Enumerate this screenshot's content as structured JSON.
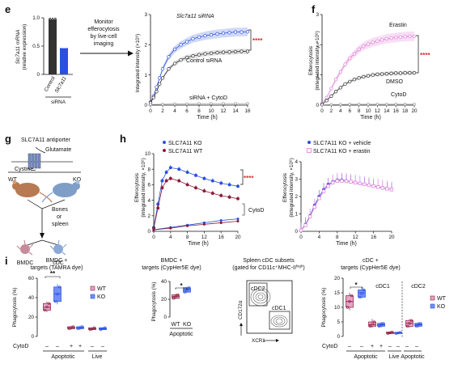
{
  "panels": {
    "e": "e",
    "f": "f",
    "g": "g",
    "h": "h",
    "i": "i"
  },
  "colors": {
    "blue": "#2b4fe0",
    "grey": "#333333",
    "magenta": "#e07ad8",
    "maroon": "#8c1c3c",
    "koLight": "#6f8ff5",
    "wtPink": "#e4a3c7",
    "red": "#d7302c"
  },
  "text": {
    "e_ylabel1": "Slc7a11 mRNA",
    "e_ylabel2": "(relative expression)",
    "e_group": "siRNA",
    "e_cat1": "Control",
    "e_cat2": "Slc7a11",
    "e_arrow1": "Monitor",
    "e_arrow2": "efferocytosis",
    "e_arrow3": "by live-cell",
    "e_arrow4": "imaging",
    "e_series1": "Slc7a11 siRNA",
    "e_series2": "Control siRNA",
    "e_series3": "siRNA + CytoD",
    "e_ylabel": "Integrated intensity (×10⁶)",
    "time": "Time (h)",
    "f_series1": "Erastin",
    "f_series2": "DMSO",
    "f_series3": "CytoD",
    "f_ylabel1": "Efferocytosis",
    "f_ylabel2": "(integrated intensity, ×10⁶)",
    "g_title": "SLC7A11 antiporter",
    "g_glu": "Glutamate",
    "g_cys": "Cystine",
    "g_wt": "WT",
    "g_ko": "KO",
    "g_bones1": "Bones",
    "g_bones2": "or",
    "g_bones3": "spleen",
    "g_bmdc": "BMDC",
    "g_cdc": "cDC",
    "h_l1": "SLC7A11 KO",
    "h_l2": "SLC7A11 WT",
    "h_r1": "SLC7A11 KO + vehicle",
    "h_r2": "SLC7A11 KO + erastin",
    "h_cytod": "CytoD",
    "h_ylabel1": "Efferocytosis",
    "h_ylabel2": "(integrated intensity, ×10⁶)",
    "i1_t1": "BMDC +",
    "i1_t2": "targets (TAMRA dye)",
    "i2_t1": "BMDC +",
    "i2_t2": "targets (CypHer5E dye)",
    "i3_t1": "Spleen cDC subsets",
    "i3_t2": "(gated for CD11c⁺MHC-II",
    "i3_t2sup": "high",
    "i3_t2end": ")",
    "i4_t1": "cDC +",
    "i4_t2": "targets (CypHer5E dye)",
    "phago": "Phagocytosis (%)",
    "wt": "WT",
    "ko": "KO",
    "cytod": "CytoD",
    "minus": "–",
    "plus": "+",
    "apoptotic": "Apoptotic",
    "live": "Live",
    "cdc1": "cDC1",
    "cdc2": "cDC2",
    "cd172": "CD172α",
    "xcr1": "XCR1",
    "sig2": "**",
    "sig1": "*",
    "sig4": "****"
  },
  "chart_data": [
    {
      "id": "e-bar",
      "type": "bar",
      "categories": [
        "Control",
        "Slc7a11"
      ],
      "values": [
        1.0,
        0.47
      ],
      "ylim": [
        0,
        1.0
      ],
      "yticks": [
        0,
        0.5,
        1.0
      ]
    },
    {
      "id": "e-line",
      "type": "line",
      "xlim": [
        0,
        16
      ],
      "ylim": [
        0,
        3
      ],
      "xticks": [
        0,
        2,
        4,
        6,
        8,
        10,
        12,
        14,
        16
      ],
      "yticks": [
        0,
        1,
        2,
        3
      ],
      "series": [
        {
          "name": "Slc7a11 siRNA",
          "x": [
            0,
            0.5,
            1,
            1.5,
            2,
            3,
            4,
            5,
            6,
            7,
            8,
            9,
            10,
            11,
            12,
            13,
            14,
            15,
            16
          ],
          "y": [
            0.1,
            0.3,
            0.6,
            0.9,
            1.2,
            1.6,
            1.85,
            2.0,
            2.1,
            2.2,
            2.25,
            2.3,
            2.33,
            2.36,
            2.38,
            2.4,
            2.42,
            2.42,
            2.43
          ]
        },
        {
          "name": "Control siRNA",
          "x": [
            0,
            0.5,
            1,
            1.5,
            2,
            3,
            4,
            5,
            6,
            7,
            8,
            9,
            10,
            11,
            12,
            13,
            14,
            15,
            16
          ],
          "y": [
            0.08,
            0.25,
            0.45,
            0.7,
            0.9,
            1.2,
            1.38,
            1.5,
            1.58,
            1.63,
            1.67,
            1.7,
            1.72,
            1.74,
            1.75,
            1.76,
            1.77,
            1.78,
            1.78
          ]
        },
        {
          "name": "siRNA + CytoD",
          "x": [
            0,
            2,
            4,
            6,
            8,
            10,
            12,
            14,
            16
          ],
          "y": [
            0.02,
            0.03,
            0.04,
            0.04,
            0.05,
            0.05,
            0.05,
            0.05,
            0.05
          ]
        }
      ]
    },
    {
      "id": "f-line",
      "type": "line",
      "xlim": [
        0,
        20
      ],
      "ylim": [
        0,
        3
      ],
      "xticks": [
        0,
        2,
        4,
        6,
        8,
        10,
        12,
        14,
        16,
        18,
        20
      ],
      "yticks": [
        0,
        1,
        2,
        3
      ],
      "series": [
        {
          "name": "Erastin",
          "x": [
            0,
            1,
            2,
            3,
            4,
            5,
            6,
            7,
            8,
            9,
            10,
            11,
            12,
            13,
            14,
            15,
            16,
            17,
            18,
            19,
            20
          ],
          "y": [
            0.05,
            0.25,
            0.55,
            0.85,
            1.1,
            1.35,
            1.55,
            1.7,
            1.85,
            1.95,
            2.02,
            2.08,
            2.12,
            2.16,
            2.2,
            2.22,
            2.24,
            2.26,
            2.27,
            2.28,
            2.28
          ]
        },
        {
          "name": "DMSO",
          "x": [
            0,
            1,
            2,
            3,
            4,
            5,
            6,
            7,
            8,
            9,
            10,
            11,
            12,
            13,
            14,
            15,
            16,
            17,
            18,
            19,
            20
          ],
          "y": [
            0.03,
            0.15,
            0.3,
            0.45,
            0.58,
            0.7,
            0.78,
            0.85,
            0.9,
            0.94,
            0.97,
            1.0,
            1.02,
            1.03,
            1.04,
            1.05,
            1.06,
            1.06,
            1.07,
            1.07,
            1.07
          ]
        },
        {
          "name": "CytoD",
          "x": [
            0,
            2,
            4,
            6,
            8,
            10,
            12,
            14,
            16,
            18,
            20
          ],
          "y": [
            0.01,
            0.02,
            0.02,
            0.03,
            0.03,
            0.03,
            0.03,
            0.03,
            0.03,
            0.03,
            0.03
          ]
        }
      ]
    },
    {
      "id": "h-left",
      "type": "line",
      "xlim": [
        0,
        20
      ],
      "ylim": [
        0,
        10
      ],
      "xticks": [
        0,
        4,
        8,
        12,
        16,
        20
      ],
      "yticks": [
        0,
        2,
        4,
        6,
        8,
        10
      ],
      "series": [
        {
          "name": "SLC7A11 KO",
          "x": [
            0,
            1,
            2,
            3,
            4,
            6,
            8,
            10,
            12,
            14,
            16,
            18,
            20
          ],
          "y": [
            0.5,
            3.5,
            6.5,
            7.6,
            8.2,
            8.0,
            7.6,
            7.2,
            6.8,
            6.5,
            6.2,
            6.0,
            5.8
          ]
        },
        {
          "name": "SLC7A11 WT",
          "x": [
            0,
            1,
            2,
            3,
            4,
            6,
            8,
            10,
            12,
            14,
            16,
            18,
            20
          ],
          "y": [
            0.4,
            3.0,
            5.6,
            6.5,
            6.8,
            6.5,
            6.0,
            5.6,
            5.2,
            4.9,
            4.6,
            4.4,
            4.2
          ]
        },
        {
          "name": "KO CytoD",
          "x": [
            0,
            4,
            8,
            12,
            16,
            20
          ],
          "y": [
            0.2,
            0.5,
            0.8,
            1.1,
            1.4,
            1.6
          ]
        },
        {
          "name": "WT CytoD",
          "x": [
            0,
            4,
            8,
            12,
            16,
            20
          ],
          "y": [
            0.2,
            0.4,
            0.7,
            0.9,
            1.1,
            1.3
          ]
        }
      ]
    },
    {
      "id": "h-right",
      "type": "line",
      "xlim": [
        0,
        20
      ],
      "ylim": [
        0,
        4
      ],
      "xticks": [
        0,
        4,
        8,
        12,
        16,
        20
      ],
      "yticks": [
        0,
        1,
        2,
        3,
        4
      ],
      "series": [
        {
          "name": "SLC7A11 KO + vehicle",
          "x": [
            0,
            1,
            2,
            3,
            4,
            5,
            6,
            7,
            8,
            9,
            10,
            11,
            12,
            13,
            14,
            15,
            16,
            17,
            18,
            19,
            20
          ],
          "y": [
            0.05,
            0.4,
            0.9,
            1.5,
            2.0,
            2.4,
            2.7,
            2.85,
            2.95,
            2.95,
            2.9,
            2.85,
            2.8,
            2.75,
            2.7,
            2.65,
            2.6,
            2.55,
            2.5,
            2.45,
            2.4
          ]
        },
        {
          "name": "SLC7A11 KO + erastin",
          "x": [
            0,
            1,
            2,
            3,
            4,
            5,
            6,
            7,
            8,
            9,
            10,
            11,
            12,
            13,
            14,
            15,
            16,
            17,
            18,
            19,
            20
          ],
          "y": [
            0.05,
            0.35,
            0.85,
            1.4,
            1.9,
            2.3,
            2.6,
            2.8,
            2.9,
            2.9,
            2.88,
            2.85,
            2.8,
            2.75,
            2.7,
            2.65,
            2.6,
            2.55,
            2.5,
            2.45,
            2.4
          ]
        }
      ]
    },
    {
      "id": "i1",
      "type": "box",
      "ylim": [
        0,
        60
      ],
      "yticks": [
        0,
        20,
        40,
        60
      ],
      "groups": [
        {
          "name": "WT Apoptotic",
          "median": 30,
          "q1": 27,
          "q3": 34,
          "min": 25,
          "max": 36
        },
        {
          "name": "KO Apoptotic",
          "median": 44,
          "q1": 36,
          "q3": 51,
          "min": 33,
          "max": 54
        },
        {
          "name": "WT Apoptotic CytoD",
          "median": 9,
          "q1": 8,
          "q3": 10,
          "min": 7,
          "max": 11
        },
        {
          "name": "KO Apoptotic CytoD",
          "median": 9,
          "q1": 8,
          "q3": 10,
          "min": 7,
          "max": 11
        },
        {
          "name": "WT Live",
          "median": 8,
          "q1": 7,
          "q3": 9,
          "min": 6,
          "max": 9
        },
        {
          "name": "KO Live",
          "median": 8,
          "q1": 7,
          "q3": 9,
          "min": 7,
          "max": 9
        }
      ]
    },
    {
      "id": "i2",
      "type": "box",
      "ylim": [
        0,
        40
      ],
      "yticks": [
        0,
        20,
        40
      ],
      "groups": [
        {
          "name": "WT",
          "median": 23,
          "q1": 21,
          "q3": 25,
          "min": 20,
          "max": 26
        },
        {
          "name": "KO",
          "median": 31,
          "q1": 28,
          "q3": 33,
          "min": 27,
          "max": 34
        }
      ]
    },
    {
      "id": "i4",
      "type": "box",
      "ylim": [
        0,
        20
      ],
      "yticks": [
        0,
        5,
        10,
        15,
        20
      ],
      "groups": [
        {
          "name": "WT Apoptotic",
          "median": 12,
          "q1": 10,
          "q3": 14,
          "min": 9,
          "max": 15
        },
        {
          "name": "KO Apoptotic",
          "median": 15,
          "q1": 13.5,
          "q3": 16,
          "min": 13,
          "max": 17
        },
        {
          "name": "WT Apoptotic CytoD",
          "median": 4,
          "q1": 3.5,
          "q3": 5,
          "min": 3,
          "max": 6
        },
        {
          "name": "KO Apoptotic CytoD",
          "median": 4,
          "q1": 3.5,
          "q3": 4.5,
          "min": 3,
          "max": 5
        },
        {
          "name": "WT Live",
          "median": 1.2,
          "q1": 1,
          "q3": 1.5,
          "min": 0.8,
          "max": 1.8
        },
        {
          "name": "KO Live",
          "median": 1.2,
          "q1": 1,
          "q3": 1.4,
          "min": 0.9,
          "max": 1.6
        },
        {
          "name": "cDC2 WT",
          "median": 4.5,
          "q1": 3.5,
          "q3": 5.5,
          "min": 3,
          "max": 6
        },
        {
          "name": "cDC2 KO",
          "median": 4,
          "q1": 3.5,
          "q3": 4.5,
          "min": 3,
          "max": 5
        }
      ]
    }
  ]
}
